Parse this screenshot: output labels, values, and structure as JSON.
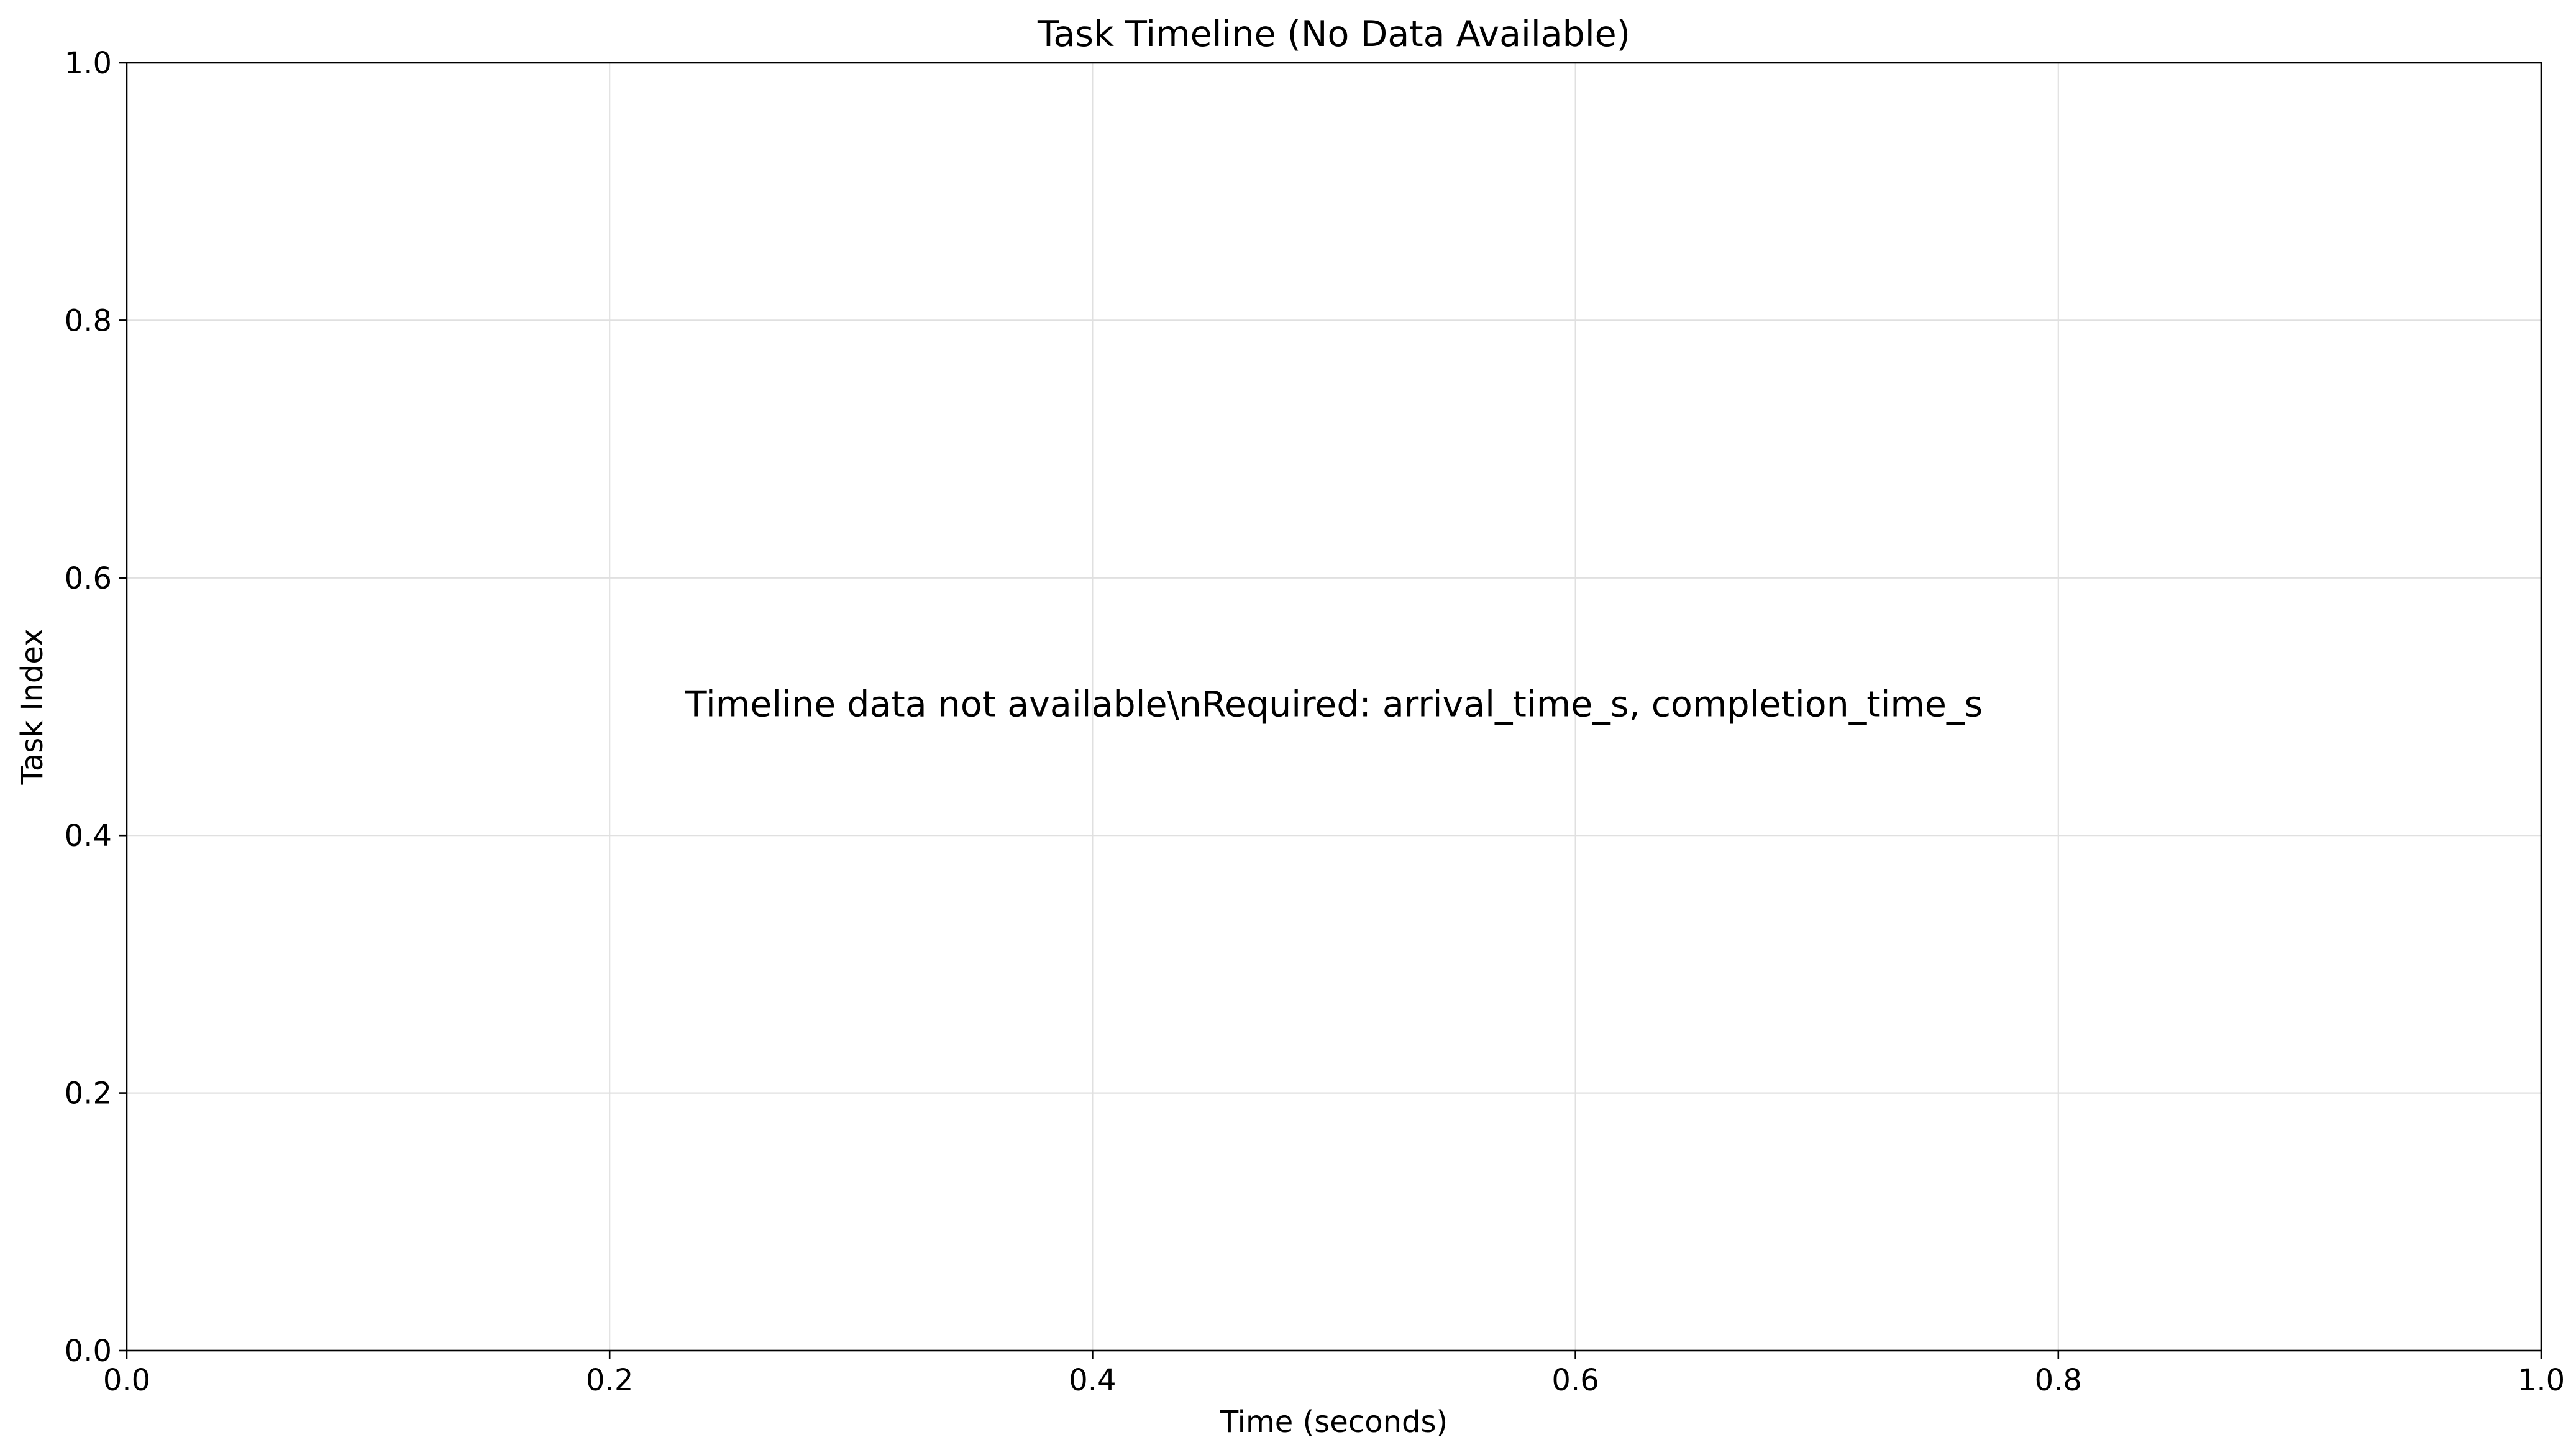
{
  "chart_data": {
    "type": "scatter",
    "title": "Task Timeline (No Data Available)",
    "xlabel": "Time (seconds)",
    "ylabel": "Task Index",
    "xlim": [
      0.0,
      1.0
    ],
    "ylim": [
      0.0,
      1.0
    ],
    "x_ticks": [
      0.0,
      0.2,
      0.4,
      0.6,
      0.8,
      1.0
    ],
    "y_ticks": [
      0.0,
      0.2,
      0.4,
      0.6,
      0.8,
      1.0
    ],
    "x_tick_labels": [
      "0.0",
      "0.2",
      "0.4",
      "0.6",
      "0.8",
      "1.0"
    ],
    "y_tick_labels": [
      "0.0",
      "0.2",
      "0.4",
      "0.6",
      "0.8",
      "1.0"
    ],
    "grid": true,
    "series": [],
    "annotation": {
      "text": "Timeline data not available\\nRequired: arrival_time_s, completion_time_s",
      "x": 0.5,
      "y": 0.5
    },
    "colors": {
      "grid": "#e0e0e0",
      "axis": "#000000",
      "background": "#ffffff"
    }
  }
}
